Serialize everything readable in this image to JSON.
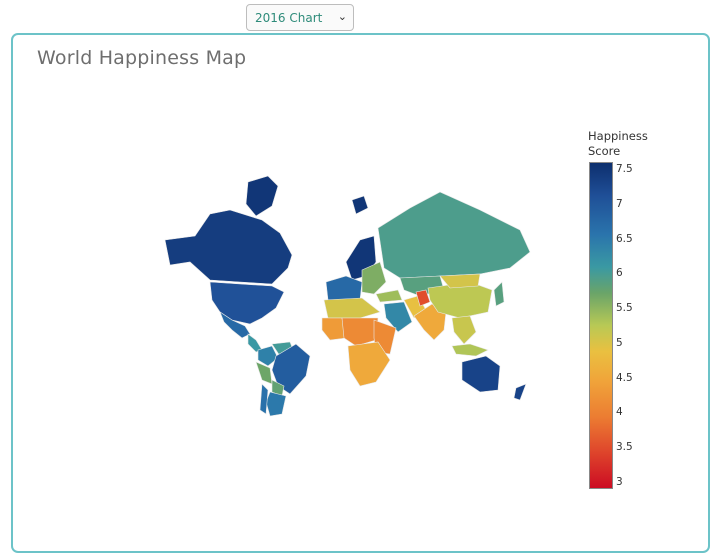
{
  "selector": {
    "selected": "2016 Chart",
    "options": [
      "2016 Chart"
    ]
  },
  "card": {
    "title": "World Happiness Map"
  },
  "colors": {
    "card_border": "#6cc3c8",
    "title": "#6e6e6e",
    "select_text": "#2e8b7a"
  },
  "chart_data": {
    "type": "choropleth",
    "title": "World Happiness Map",
    "colorbar": {
      "title_line1": "Happiness",
      "title_line2": "Score",
      "range": [
        2.9,
        7.6
      ],
      "ticks": [
        "7.5",
        "7",
        "6.5",
        "6",
        "5.5",
        "5",
        "4.5",
        "4",
        "3.5",
        "3"
      ],
      "colorscale": [
        "#cc0c23",
        "#e04a2c",
        "#ec7d32",
        "#f0a43a",
        "#eac040",
        "#b8c955",
        "#6aa469",
        "#3a99a3",
        "#2a74ac",
        "#1f4f97",
        "#0d2f6e"
      ]
    },
    "regions": [
      {
        "name": "Canada",
        "value": 7.4
      },
      {
        "name": "United States",
        "value": 7.1
      },
      {
        "name": "Mexico",
        "value": 6.8
      },
      {
        "name": "Central America",
        "value": 6.2
      },
      {
        "name": "Colombia",
        "value": 6.5
      },
      {
        "name": "Venezuela",
        "value": 6.1
      },
      {
        "name": "Brazil",
        "value": 6.95
      },
      {
        "name": "Peru",
        "value": 5.7
      },
      {
        "name": "Bolivia",
        "value": 5.8
      },
      {
        "name": "Argentina",
        "value": 6.6
      },
      {
        "name": "Chile",
        "value": 6.7
      },
      {
        "name": "Greenland",
        "value": 7.5
      },
      {
        "name": "Iceland",
        "value": 7.5
      },
      {
        "name": "Nordic Countries",
        "value": 7.5
      },
      {
        "name": "Western Europe",
        "value": 6.8
      },
      {
        "name": "Eastern Europe",
        "value": 5.6
      },
      {
        "name": "Russia",
        "value": 6.0
      },
      {
        "name": "Kazakhstan",
        "value": 5.9
      },
      {
        "name": "Turkey",
        "value": 5.4
      },
      {
        "name": "Middle East",
        "value": 6.4
      },
      {
        "name": "Iran",
        "value": 4.8
      },
      {
        "name": "Afghanistan",
        "value": 3.4
      },
      {
        "name": "South Asia",
        "value": 4.4
      },
      {
        "name": "China",
        "value": 5.2
      },
      {
        "name": "Mongolia",
        "value": 5.0
      },
      {
        "name": "Southeast Asia",
        "value": 5.1
      },
      {
        "name": "Japan",
        "value": 5.9
      },
      {
        "name": "Indonesia",
        "value": 5.3
      },
      {
        "name": "Australia",
        "value": 7.3
      },
      {
        "name": "New Zealand",
        "value": 7.3
      },
      {
        "name": "North Africa",
        "value": 5.0
      },
      {
        "name": "West Africa",
        "value": 4.2
      },
      {
        "name": "Central Africa",
        "value": 4.0
      },
      {
        "name": "East Africa",
        "value": 4.0
      },
      {
        "name": "Southern Africa",
        "value": 4.4
      }
    ]
  }
}
